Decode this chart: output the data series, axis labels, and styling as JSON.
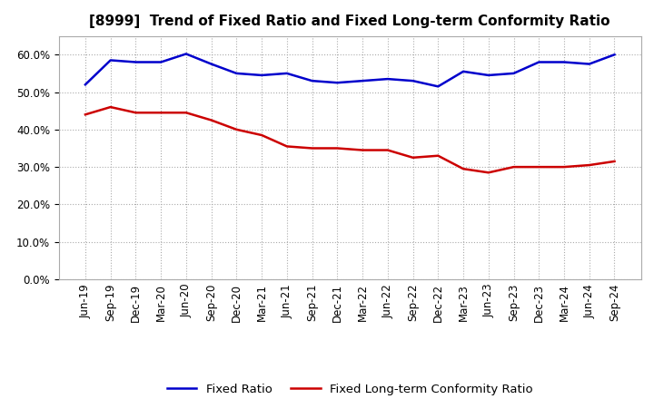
{
  "title": "[8999]  Trend of Fixed Ratio and Fixed Long-term Conformity Ratio",
  "labels": [
    "Jun-19",
    "Sep-19",
    "Dec-19",
    "Mar-20",
    "Jun-20",
    "Sep-20",
    "Dec-20",
    "Mar-21",
    "Jun-21",
    "Sep-21",
    "Dec-21",
    "Mar-22",
    "Jun-22",
    "Sep-22",
    "Dec-22",
    "Mar-23",
    "Jun-23",
    "Sep-23",
    "Dec-23",
    "Mar-24",
    "Jun-24",
    "Sep-24"
  ],
  "fixed_ratio": [
    52.0,
    58.5,
    58.0,
    58.0,
    60.2,
    57.5,
    55.0,
    54.5,
    55.0,
    53.0,
    52.5,
    53.0,
    53.5,
    53.0,
    51.5,
    55.5,
    54.5,
    55.0,
    58.0,
    58.0,
    57.5,
    60.0
  ],
  "fixed_lt_ratio": [
    44.0,
    46.0,
    44.5,
    44.5,
    44.5,
    42.5,
    40.0,
    38.5,
    35.5,
    35.0,
    35.0,
    34.5,
    34.5,
    32.5,
    33.0,
    29.5,
    28.5,
    30.0,
    30.0,
    30.0,
    30.5,
    31.5
  ],
  "fixed_ratio_color": "#0000CC",
  "fixed_lt_ratio_color": "#CC0000",
  "ylim": [
    0,
    65
  ],
  "yticks": [
    0,
    10,
    20,
    30,
    40,
    50,
    60
  ],
  "background_color": "#FFFFFF",
  "plot_bg_color": "#FFFFFF",
  "grid_color": "#AAAAAA",
  "legend_fixed": "Fixed Ratio",
  "legend_lt": "Fixed Long-term Conformity Ratio",
  "title_fontsize": 11,
  "tick_fontsize": 8.5,
  "legend_fontsize": 9.5
}
